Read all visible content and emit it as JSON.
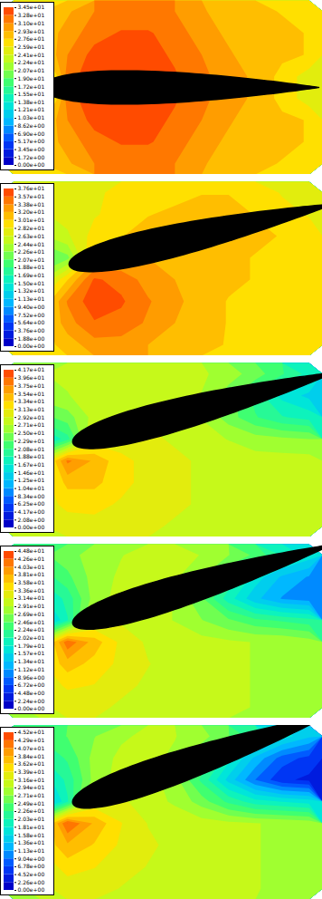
{
  "chart_data": [
    {
      "type": "contour",
      "tick_labels": false,
      "airfoil_angle": 0,
      "cells": [
        [
          27,
          27.5,
          29,
          31,
          31.5,
          31.5,
          31,
          29.5,
          28.5,
          28,
          27.5,
          27.5
        ],
        [
          27,
          28,
          30,
          32,
          33,
          33,
          32,
          30,
          29,
          28.5,
          28,
          27.5
        ],
        [
          26,
          27,
          31,
          33.5,
          34,
          33.5,
          32.5,
          31,
          29.5,
          28.5,
          28,
          27.5
        ],
        [
          25,
          20,
          32,
          34,
          34.5,
          34,
          33,
          31.5,
          30,
          29,
          27,
          25
        ],
        [
          25,
          20,
          32,
          34,
          34.5,
          34,
          33,
          31.5,
          30,
          29,
          27,
          25
        ],
        [
          26,
          27,
          31,
          33.5,
          34,
          33.5,
          32.5,
          31,
          29.5,
          28.5,
          28,
          27.5
        ],
        [
          27,
          28,
          30,
          32,
          33,
          33,
          32,
          30,
          29,
          28.5,
          28,
          27.5
        ],
        [
          27,
          27.5,
          29,
          31,
          31.5,
          31.5,
          31,
          29.5,
          28.5,
          28,
          27.5,
          27.5
        ]
      ],
      "colorbar": {
        "range": [
          0,
          34.5
        ],
        "ticks": [
          {
            "value": 0,
            "label": "0.00e+00"
          },
          {
            "value": 1.72,
            "label": "1.72e+00"
          },
          {
            "value": 3.45,
            "label": "3.45e+00"
          },
          {
            "value": 5.17,
            "label": "5.17e+00"
          },
          {
            "value": 6.9,
            "label": "6.90e+00"
          },
          {
            "value": 8.62,
            "label": "8.62e+00"
          },
          {
            "value": 10.3,
            "label": "1.03e+01"
          },
          {
            "value": 12.1,
            "label": "1.21e+01"
          },
          {
            "value": 13.8,
            "label": "1.38e+01"
          },
          {
            "value": 15.5,
            "label": "1.55e+01"
          },
          {
            "value": 17.2,
            "label": "1.72e+01"
          },
          {
            "value": 19.0,
            "label": "1.90e+01"
          },
          {
            "value": 20.7,
            "label": "2.07e+01"
          },
          {
            "value": 22.4,
            "label": "2.24e+01"
          },
          {
            "value": 24.1,
            "label": "2.41e+01"
          },
          {
            "value": 25.9,
            "label": "2.59e+01"
          },
          {
            "value": 27.6,
            "label": "2.76e+01"
          },
          {
            "value": 29.3,
            "label": "2.93e+01"
          },
          {
            "value": 31.0,
            "label": "3.10e+01"
          },
          {
            "value": 32.8,
            "label": "3.28e+01"
          },
          {
            "value": 34.5,
            "label": "3.45e+01"
          }
        ]
      }
    },
    {
      "type": "contour",
      "tick_labels": false,
      "airfoil_angle": 13,
      "cells": [
        [
          27,
          27,
          27.5,
          28,
          28.5,
          29,
          29.5,
          30,
          30,
          29.5,
          28,
          27
        ],
        [
          26,
          26,
          27,
          28,
          29,
          30,
          30.5,
          31,
          31,
          30,
          29,
          28
        ],
        [
          25,
          24,
          26,
          29,
          30,
          31,
          31,
          31,
          31,
          30.5,
          30,
          29.5
        ],
        [
          24,
          20,
          22,
          31,
          32,
          32,
          31.5,
          31,
          30.5,
          30,
          30,
          29.5
        ],
        [
          25,
          24,
          30,
          36,
          35,
          33,
          32,
          31,
          30.5,
          30,
          29.5,
          29
        ],
        [
          27,
          28,
          34,
          37,
          36,
          34,
          32.5,
          31,
          30,
          29.5,
          29,
          29
        ],
        [
          28,
          29,
          33,
          35.5,
          35,
          33.5,
          32,
          31,
          30,
          29.5,
          29,
          29
        ],
        [
          28.5,
          29,
          31,
          33,
          33,
          32,
          31,
          30.5,
          30,
          29.5,
          29,
          29
        ]
      ],
      "colorbar": {
        "range": [
          0,
          37.6
        ],
        "ticks": [
          {
            "value": 0,
            "label": "0.00e+00"
          },
          {
            "value": 1.88,
            "label": "1.88e+00"
          },
          {
            "value": 3.76,
            "label": "3.76e+00"
          },
          {
            "value": 5.64,
            "label": "5.64e+00"
          },
          {
            "value": 7.52,
            "label": "7.52e+00"
          },
          {
            "value": 9.4,
            "label": "9.40e+00"
          },
          {
            "value": 11.3,
            "label": "1.13e+01"
          },
          {
            "value": 13.2,
            "label": "1.32e+01"
          },
          {
            "value": 15.0,
            "label": "1.50e+01"
          },
          {
            "value": 16.9,
            "label": "1.69e+01"
          },
          {
            "value": 18.8,
            "label": "1.88e+01"
          },
          {
            "value": 20.7,
            "label": "2.07e+01"
          },
          {
            "value": 22.6,
            "label": "2.26e+01"
          },
          {
            "value": 24.4,
            "label": "2.44e+01"
          },
          {
            "value": 26.3,
            "label": "2.63e+01"
          },
          {
            "value": 28.2,
            "label": "2.82e+01"
          },
          {
            "value": 30.1,
            "label": "3.01e+01"
          },
          {
            "value": 32.0,
            "label": "3.20e+01"
          },
          {
            "value": 33.8,
            "label": "3.38e+01"
          },
          {
            "value": 35.7,
            "label": "3.57e+01"
          },
          {
            "value": 37.6,
            "label": "3.76e+01"
          }
        ]
      }
    },
    {
      "type": "contour",
      "tick_labels": false,
      "airfoil_angle": 15,
      "cells": [
        [
          27,
          27,
          27.5,
          28,
          28,
          28.5,
          28,
          27.5,
          26,
          24,
          21,
          18
        ],
        [
          26,
          26,
          27,
          28,
          28.5,
          28.5,
          28,
          27,
          24,
          20,
          16,
          14
        ],
        [
          25,
          22,
          24,
          28,
          29,
          29,
          28.5,
          27,
          24,
          21,
          19,
          18
        ],
        [
          24,
          15,
          20,
          30,
          30,
          29.5,
          29,
          28,
          27,
          26,
          25.5,
          25
        ],
        [
          26,
          28,
          38,
          35,
          32,
          30.5,
          29.5,
          29,
          28.5,
          28,
          28,
          28
        ],
        [
          27,
          30,
          34,
          34,
          32,
          30.5,
          29.5,
          29,
          28.5,
          28,
          28,
          28
        ],
        [
          28,
          30,
          32,
          32,
          31,
          30,
          29.5,
          29,
          28.5,
          28,
          28,
          28
        ],
        [
          28,
          29,
          30,
          30.5,
          30,
          29.5,
          29,
          28.5,
          28.5,
          28,
          28,
          28
        ]
      ],
      "colorbar": {
        "range": [
          0,
          41.7
        ],
        "ticks": [
          {
            "value": 0,
            "label": "0.00e+00"
          },
          {
            "value": 2.08,
            "label": "2.08e+00"
          },
          {
            "value": 4.17,
            "label": "4.17e+00"
          },
          {
            "value": 6.25,
            "label": "6.25e+00"
          },
          {
            "value": 8.34,
            "label": "8.34e+00"
          },
          {
            "value": 10.4,
            "label": "1.04e+01"
          },
          {
            "value": 12.5,
            "label": "1.25e+01"
          },
          {
            "value": 14.6,
            "label": "1.46e+01"
          },
          {
            "value": 16.7,
            "label": "1.67e+01"
          },
          {
            "value": 18.8,
            "label": "1.88e+01"
          },
          {
            "value": 20.8,
            "label": "2.08e+01"
          },
          {
            "value": 22.9,
            "label": "2.29e+01"
          },
          {
            "value": 25.0,
            "label": "2.50e+01"
          },
          {
            "value": 27.1,
            "label": "2.71e+01"
          },
          {
            "value": 29.2,
            "label": "2.92e+01"
          },
          {
            "value": 31.3,
            "label": "3.13e+01"
          },
          {
            "value": 33.4,
            "label": "3.34e+01"
          },
          {
            "value": 35.4,
            "label": "3.54e+01"
          },
          {
            "value": 37.5,
            "label": "3.75e+01"
          },
          {
            "value": 39.6,
            "label": "3.96e+01"
          },
          {
            "value": 41.7,
            "label": "4.17e+01"
          }
        ]
      }
    },
    {
      "type": "contour",
      "tick_labels": false,
      "airfoil_angle": 17,
      "cells": [
        [
          24,
          24,
          26,
          28,
          29,
          30,
          30,
          29,
          27,
          24,
          20,
          17
        ],
        [
          22,
          21,
          24,
          28,
          29.5,
          30,
          29.5,
          27,
          22,
          17,
          13,
          11
        ],
        [
          21,
          17,
          21,
          28,
          30,
          30,
          29,
          25,
          19,
          14,
          11,
          10
        ],
        [
          21,
          12,
          20,
          31,
          31,
          30,
          29,
          27,
          25,
          23,
          22,
          21
        ],
        [
          24,
          30,
          42,
          37,
          33,
          31,
          30.5,
          30,
          29.5,
          29,
          29,
          28
        ],
        [
          26,
          33,
          37,
          35,
          33,
          31.5,
          30.5,
          30,
          29.5,
          29,
          29,
          28
        ],
        [
          28,
          32,
          34,
          33.5,
          32,
          31,
          30.5,
          30,
          29.5,
          29,
          29,
          28
        ],
        [
          28.5,
          31,
          32,
          32,
          31,
          30.5,
          30,
          29.5,
          29.5,
          29,
          29,
          28
        ]
      ],
      "colorbar": {
        "range": [
          0,
          44.8
        ],
        "ticks": [
          {
            "value": 0,
            "label": "0.00e+00"
          },
          {
            "value": 2.24,
            "label": "2.24e+00"
          },
          {
            "value": 4.48,
            "label": "4.48e+00"
          },
          {
            "value": 6.72,
            "label": "6.72e+00"
          },
          {
            "value": 8.96,
            "label": "8.96e+00"
          },
          {
            "value": 11.2,
            "label": "1.12e+01"
          },
          {
            "value": 13.4,
            "label": "1.34e+01"
          },
          {
            "value": 15.7,
            "label": "1.57e+01"
          },
          {
            "value": 17.9,
            "label": "1.79e+01"
          },
          {
            "value": 20.2,
            "label": "2.02e+01"
          },
          {
            "value": 22.4,
            "label": "2.24e+01"
          },
          {
            "value": 24.6,
            "label": "2.46e+01"
          },
          {
            "value": 26.9,
            "label": "2.69e+01"
          },
          {
            "value": 29.1,
            "label": "2.91e+01"
          },
          {
            "value": 31.4,
            "label": "3.14e+01"
          },
          {
            "value": 33.6,
            "label": "3.36e+01"
          },
          {
            "value": 35.8,
            "label": "3.58e+01"
          },
          {
            "value": 38.1,
            "label": "3.81e+01"
          },
          {
            "value": 40.3,
            "label": "4.03e+01"
          },
          {
            "value": 42.6,
            "label": "4.26e+01"
          },
          {
            "value": 44.8,
            "label": "4.48e+01"
          }
        ]
      }
    },
    {
      "type": "contour",
      "tick_labels": false,
      "airfoil_angle": 19,
      "cells": [
        [
          23,
          23,
          25,
          27,
          29,
          30,
          29.5,
          28,
          25,
          21,
          17,
          14
        ],
        [
          21,
          20,
          23,
          28,
          30,
          30,
          29,
          25,
          19,
          13,
          8,
          6
        ],
        [
          20,
          16,
          21,
          28,
          30.5,
          30.5,
          28,
          22,
          15,
          9,
          5,
          4
        ],
        [
          20,
          11,
          20,
          32,
          32,
          30.5,
          29,
          26,
          22,
          19,
          18,
          17
        ],
        [
          24,
          31,
          43,
          38,
          34,
          31.5,
          31,
          30.5,
          30,
          29.5,
          29,
          28.5
        ],
        [
          26,
          34,
          38,
          36,
          33.5,
          32,
          31,
          30.5,
          30,
          29.5,
          29,
          28.5
        ],
        [
          28,
          32,
          35,
          34,
          32.5,
          31.5,
          31,
          30.5,
          30,
          29.5,
          29,
          28.5
        ],
        [
          28.5,
          31,
          32.5,
          32.5,
          31.5,
          31,
          30.5,
          30,
          30,
          29.5,
          29,
          28.5
        ]
      ],
      "colorbar": {
        "range": [
          0,
          45.2
        ],
        "ticks": [
          {
            "value": 0,
            "label": "0.00e+00"
          },
          {
            "value": 2.26,
            "label": "2.26e+00"
          },
          {
            "value": 4.52,
            "label": "4.52e+00"
          },
          {
            "value": 6.78,
            "label": "6.78e+00"
          },
          {
            "value": 9.04,
            "label": "9.04e+00"
          },
          {
            "value": 11.3,
            "label": "1.13e+01"
          },
          {
            "value": 13.6,
            "label": "1.36e+01"
          },
          {
            "value": 15.8,
            "label": "1.58e+01"
          },
          {
            "value": 18.1,
            "label": "1.81e+01"
          },
          {
            "value": 20.3,
            "label": "2.03e+01"
          },
          {
            "value": 22.6,
            "label": "2.26e+01"
          },
          {
            "value": 24.9,
            "label": "2.49e+01"
          },
          {
            "value": 27.1,
            "label": "2.71e+01"
          },
          {
            "value": 29.4,
            "label": "2.94e+01"
          },
          {
            "value": 31.6,
            "label": "3.16e+01"
          },
          {
            "value": 33.9,
            "label": "3.39e+01"
          },
          {
            "value": 36.2,
            "label": "3.62e+01"
          },
          {
            "value": 38.4,
            "label": "3.84e+01"
          },
          {
            "value": 40.7,
            "label": "4.07e+01"
          },
          {
            "value": 42.9,
            "label": "4.29e+01"
          },
          {
            "value": 45.2,
            "label": "4.52e+01"
          }
        ]
      }
    }
  ]
}
